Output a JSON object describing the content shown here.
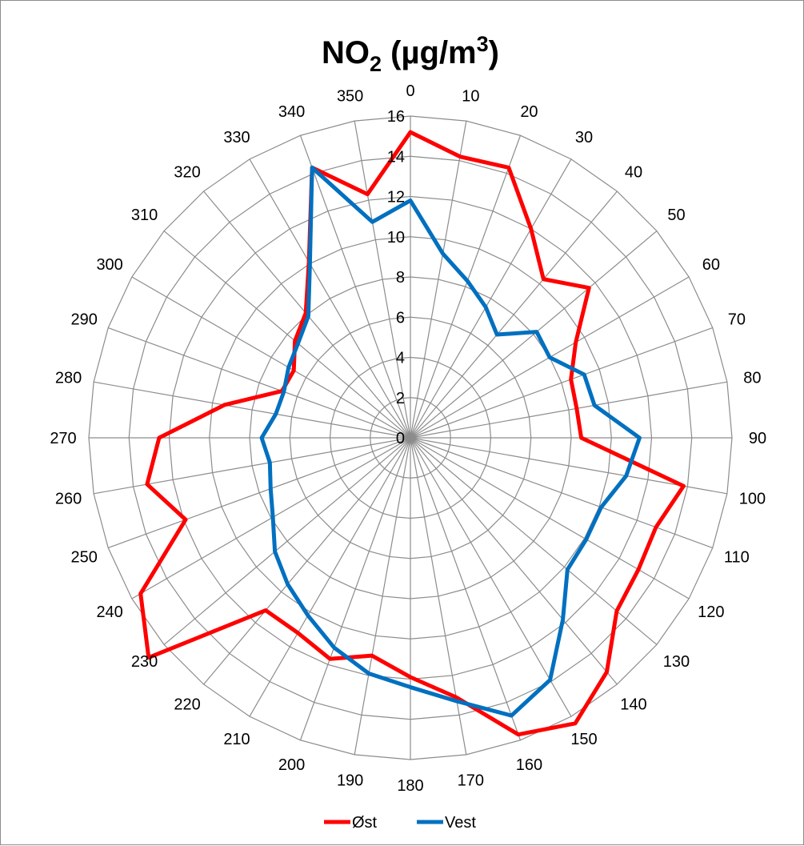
{
  "chart_data": {
    "type": "radar",
    "title": {
      "main": "NO",
      "subscript": "2",
      "unit_prefix": " (µg/m",
      "superscript": "3",
      "unit_suffix": ")"
    },
    "categories": [
      "0",
      "10",
      "20",
      "30",
      "40",
      "50",
      "60",
      "70",
      "80",
      "90",
      "100",
      "110",
      "120",
      "130",
      "140",
      "150",
      "160",
      "170",
      "180",
      "190",
      "200",
      "210",
      "220",
      "230",
      "240",
      "250",
      "260",
      "270",
      "280",
      "290",
      "300",
      "310",
      "320",
      "330",
      "340",
      "350"
    ],
    "radial_ticks": [
      "0",
      "2",
      "4",
      "6",
      "8",
      "10",
      "12",
      "14",
      "16"
    ],
    "r_range": [
      0,
      16
    ],
    "grid": true,
    "legend_position": "bottom",
    "series": [
      {
        "name": "Øst",
        "color": "#ff0000",
        "values": [
          15.2,
          14.2,
          14.3,
          12.0,
          10.3,
          11.6,
          9.5,
          8.5,
          8.4,
          8.5,
          13.8,
          13.0,
          13.1,
          13.4,
          15.2,
          16.4,
          15.7,
          13.1,
          11.9,
          11.0,
          11.7,
          11.2,
          11.2,
          17.0,
          15.5,
          11.9,
          13.3,
          12.5,
          9.4,
          6.8,
          6.7,
          7.5,
          8.1,
          10.1,
          14.3,
          12.3
        ]
      },
      {
        "name": "Vest",
        "color": "#0070c0",
        "values": [
          11.8,
          9.3,
          8.3,
          7.5,
          6.7,
          8.2,
          8.0,
          9.2,
          9.3,
          11.4,
          10.9,
          10.1,
          10.1,
          10.2,
          11.8,
          13.9,
          14.7,
          13.3,
          12.4,
          11.9,
          11.1,
          10.2,
          9.5,
          8.8,
          7.9,
          7.4,
          7.1,
          7.4,
          6.8,
          6.7,
          7.0,
          7.3,
          7.9,
          10.0,
          14.3,
          10.9
        ]
      }
    ]
  }
}
